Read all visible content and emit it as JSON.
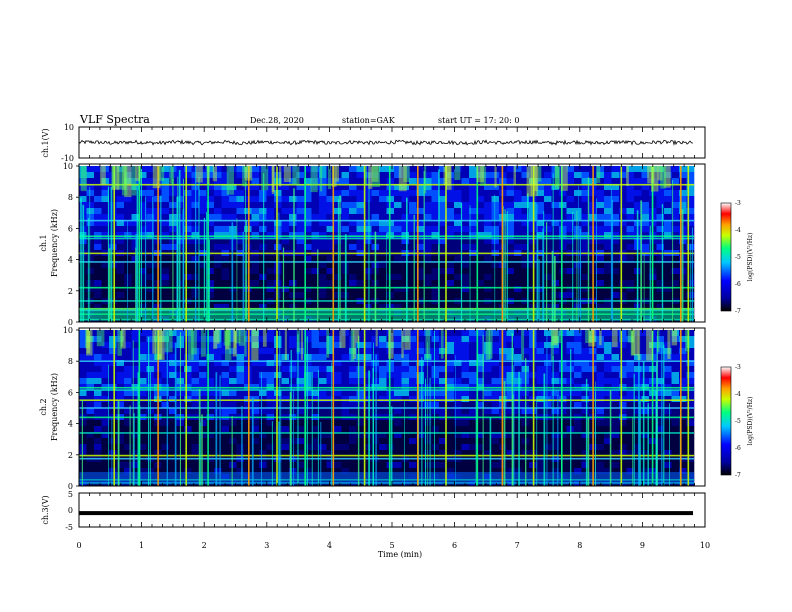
{
  "header": {
    "title": "VLF Spectra",
    "date": "Dec.28, 2020",
    "station": "station=GAK",
    "start": "start  UT =   17: 20: 0"
  },
  "chart_data": [
    {
      "type": "line",
      "name": "ch1-waveform",
      "ylabel": "ch.1(V)",
      "ylim": [
        -10,
        10
      ],
      "y_ticks": [
        "10",
        "-10"
      ],
      "xlim": [
        0,
        10
      ],
      "approx_mean": 0,
      "approx_amplitude": 1.2
    },
    {
      "type": "heatmap",
      "name": "ch1-spectrogram",
      "ylabel": "ch.1\nFrequency (kHz)",
      "ylim": [
        0,
        10
      ],
      "y_ticks": [
        "0",
        "2",
        "4",
        "6",
        "8",
        "10"
      ],
      "xlim": [
        0,
        10
      ],
      "colorbar": {
        "label": "log(PSD)(V²/Hz)",
        "range": [
          -7,
          -3
        ],
        "ticks": [
          "-3",
          "-4",
          "-5",
          "-6",
          "-7"
        ]
      },
      "persistent_lines_khz": [
        0.15,
        0.5,
        0.75,
        0.85,
        1.35,
        2.2,
        3.85,
        4.4,
        5.35,
        5.5,
        6.5,
        8.8
      ],
      "bursts_min": [
        0.55,
        0.95,
        1.25,
        1.7,
        2.05,
        2.7,
        3.15,
        3.6,
        4.05,
        4.55,
        4.95,
        5.4,
        5.85,
        6.35,
        6.75,
        7.25,
        7.7,
        8.2,
        8.65,
        9.15,
        9.6,
        9.72
      ]
    },
    {
      "type": "heatmap",
      "name": "ch2-spectrogram",
      "ylabel": "ch.2\nFrequency (kHz)",
      "ylim": [
        0,
        10
      ],
      "y_ticks": [
        "0",
        "2",
        "4",
        "6",
        "8",
        "10"
      ],
      "xlim": [
        0,
        10
      ],
      "colorbar": {
        "label": "log(PSD)(V²/Hz)",
        "range": [
          -7,
          -3
        ],
        "ticks": [
          "-3",
          "-4",
          "-5",
          "-6",
          "-7"
        ]
      },
      "persistent_lines_khz": [
        0.2,
        0.4,
        1.75,
        1.95,
        3.4,
        4.4,
        5.0,
        5.5,
        6.15,
        6.3,
        8.0
      ],
      "bursts_min": [
        0.55,
        0.95,
        1.25,
        1.7,
        2.05,
        2.7,
        3.15,
        3.6,
        4.05,
        4.55,
        4.95,
        5.4,
        5.85,
        6.35,
        6.75,
        7.25,
        7.7,
        8.2,
        8.65,
        9.15,
        9.6,
        9.72
      ]
    },
    {
      "type": "line",
      "name": "ch3-waveform",
      "ylabel": "ch.3(V)",
      "ylim": [
        -5,
        5
      ],
      "y_ticks": [
        "5",
        "0",
        "-5"
      ],
      "xlim": [
        0,
        10
      ],
      "approx_level": -0.9
    }
  ],
  "xaxis": {
    "label": "Time (min)",
    "ticks": [
      "0",
      "1",
      "2",
      "3",
      "4",
      "5",
      "6",
      "7",
      "8",
      "9",
      "10"
    ]
  },
  "colors": {
    "colormap": [
      "#000080",
      "#0000ff",
      "#00c8ff",
      "#00ff80",
      "#c8ff00",
      "#ffa000",
      "#ff0000",
      "#ffffff"
    ]
  }
}
